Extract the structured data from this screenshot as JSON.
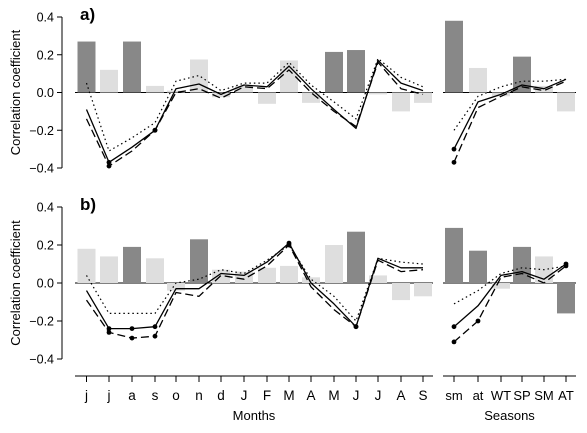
{
  "chart_data": [
    {
      "type": "bar",
      "panel_label": "a)",
      "ylabel": "Correlation coefficient",
      "ylim": [
        -0.4,
        0.4
      ],
      "yticks": [
        "0.4",
        "0.2",
        "0.0",
        "−0.2",
        "−0.4"
      ],
      "yticks_values": [
        0.4,
        0.2,
        0.0,
        -0.2,
        -0.4
      ],
      "groups": [
        {
          "name": "Months",
          "categories": [
            "j",
            "j",
            "a",
            "s",
            "o",
            "n",
            "d",
            "J",
            "F",
            "M",
            "A",
            "M",
            "J",
            "J",
            "A",
            "S"
          ],
          "bars": [
            0.27,
            0.12,
            0.27,
            0.035,
            0.01,
            0.175,
            -0.025,
            0.035,
            -0.06,
            0.17,
            -0.055,
            0.215,
            0.225,
            -0.01,
            -0.1,
            -0.055
          ],
          "bar_shade": [
            "dark",
            "light",
            "dark",
            "light",
            "light",
            "light",
            "light",
            "light",
            "light",
            "light",
            "light",
            "dark",
            "dark",
            "light",
            "light",
            "light"
          ],
          "series": [
            {
              "style": "solid",
              "values": [
                -0.09,
                -0.37,
                -0.29,
                -0.2,
                0.02,
                0.045,
                -0.01,
                0.04,
                0.03,
                0.14,
                0.02,
                -0.09,
                -0.19,
                0.17,
                0.05,
                0.01
              ],
              "markers": [
                1,
                3
              ]
            },
            {
              "style": "dashed",
              "values": [
                -0.14,
                -0.39,
                -0.31,
                -0.2,
                0.0,
                0.02,
                -0.03,
                0.03,
                0.02,
                0.12,
                0.0,
                -0.1,
                -0.18,
                0.16,
                0.02,
                -0.01
              ],
              "markers": [
                1,
                3
              ]
            },
            {
              "style": "dotted",
              "values": [
                0.05,
                -0.31,
                -0.24,
                -0.16,
                0.06,
                0.09,
                0.01,
                0.05,
                0.05,
                0.16,
                0.04,
                -0.05,
                -0.14,
                0.18,
                0.08,
                0.03
              ],
              "markers": []
            }
          ]
        },
        {
          "name": "Seasons",
          "categories": [
            "sm",
            "at",
            "WT",
            "SP",
            "SM",
            "AT"
          ],
          "bars": [
            0.38,
            0.13,
            -0.02,
            0.19,
            0.035,
            -0.1
          ],
          "bar_shade": [
            "dark",
            "light",
            "light",
            "dark",
            "light",
            "light"
          ],
          "series": [
            {
              "style": "solid",
              "values": [
                -0.3,
                -0.05,
                -0.01,
                0.04,
                0.02,
                0.07
              ],
              "markers": [
                0
              ]
            },
            {
              "style": "dashed",
              "values": [
                -0.37,
                -0.08,
                -0.02,
                0.03,
                0.01,
                0.06
              ],
              "markers": [
                0
              ]
            },
            {
              "style": "dotted",
              "values": [
                -0.2,
                -0.02,
                0.03,
                0.06,
                0.06,
                0.07
              ],
              "markers": []
            }
          ]
        }
      ]
    },
    {
      "type": "bar",
      "panel_label": "b)",
      "ylabel": "Correlation coefficient",
      "ylim": [
        -0.4,
        0.4
      ],
      "yticks": [
        "0.4",
        "0.2",
        "0.0",
        "−0.2",
        "−0.4"
      ],
      "yticks_values": [
        0.4,
        0.2,
        0.0,
        -0.2,
        -0.4
      ],
      "xlabels": [
        "Months",
        "Seasons"
      ],
      "groups": [
        {
          "name": "Months",
          "categories": [
            "j",
            "j",
            "a",
            "s",
            "o",
            "n",
            "d",
            "J",
            "F",
            "M",
            "A",
            "M",
            "J",
            "J",
            "A",
            "S"
          ],
          "bars": [
            0.18,
            0.14,
            0.19,
            0.13,
            -0.04,
            0.23,
            0.07,
            0.06,
            0.08,
            0.09,
            0.03,
            0.2,
            0.27,
            0.04,
            -0.09,
            -0.07
          ],
          "bar_shade": [
            "light",
            "light",
            "dark",
            "light",
            "light",
            "dark",
            "light",
            "light",
            "light",
            "light",
            "light",
            "light",
            "dark",
            "light",
            "light",
            "light"
          ],
          "series": [
            {
              "style": "solid",
              "values": [
                -0.04,
                -0.24,
                -0.24,
                -0.23,
                -0.03,
                -0.03,
                0.05,
                0.04,
                0.11,
                0.21,
                0.0,
                -0.11,
                -0.23,
                0.13,
                0.08,
                0.08
              ],
              "markers": [
                1,
                2,
                3,
                9,
                12
              ]
            },
            {
              "style": "dashed",
              "values": [
                -0.09,
                -0.26,
                -0.29,
                -0.28,
                -0.05,
                -0.07,
                0.04,
                0.02,
                0.09,
                0.2,
                -0.02,
                -0.14,
                -0.23,
                0.12,
                0.06,
                0.07
              ],
              "markers": [
                1,
                2,
                3,
                9,
                12
              ]
            },
            {
              "style": "dotted",
              "values": [
                0.04,
                -0.16,
                -0.16,
                -0.16,
                0.0,
                0.02,
                0.07,
                0.05,
                0.12,
                0.2,
                0.02,
                -0.07,
                -0.2,
                0.13,
                0.11,
                0.1
              ],
              "markers": []
            }
          ]
        },
        {
          "name": "Seasons",
          "categories": [
            "sm",
            "at",
            "WT",
            "SP",
            "SM",
            "AT"
          ],
          "bars": [
            0.29,
            0.17,
            -0.03,
            0.19,
            0.14,
            -0.16
          ],
          "bar_shade": [
            "dark",
            "dark",
            "light",
            "dark",
            "light",
            "dark"
          ],
          "series": [
            {
              "style": "solid",
              "values": [
                -0.23,
                -0.12,
                0.04,
                0.06,
                0.02,
                0.1
              ],
              "markers": [
                0,
                5
              ]
            },
            {
              "style": "dashed",
              "values": [
                -0.31,
                -0.2,
                0.03,
                0.05,
                0.0,
                0.09
              ],
              "markers": [
                0,
                1,
                5
              ]
            },
            {
              "style": "dotted",
              "values": [
                -0.11,
                -0.04,
                0.05,
                0.08,
                0.07,
                0.09
              ],
              "markers": []
            }
          ]
        }
      ]
    }
  ],
  "colors": {
    "dark_bar": "#888888",
    "light_bar": "#dedede",
    "line": "#000000"
  }
}
